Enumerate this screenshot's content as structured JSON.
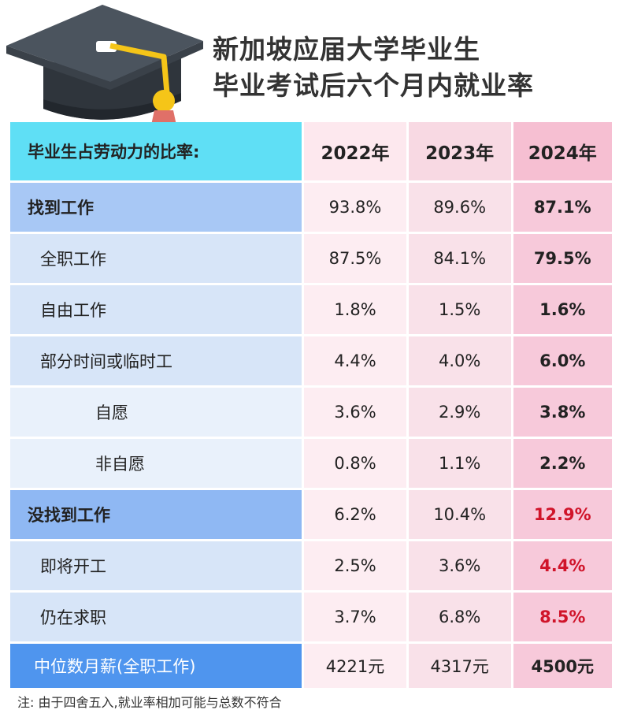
{
  "title": {
    "line1": "新加坡应届大学毕业生",
    "line2": "毕业考试后六个月内就业率"
  },
  "table": {
    "header": {
      "label": "毕业生占劳动力的比率:",
      "y2022": "2022年",
      "y2023": "2023年",
      "y2024": "2024年"
    },
    "rows": [
      {
        "label": "找到工作",
        "y2022": "93.8%",
        "y2023": "89.6%",
        "y2024": "87.1%"
      },
      {
        "label": "全职工作",
        "y2022": "87.5%",
        "y2023": "84.1%",
        "y2024": "79.5%"
      },
      {
        "label": "自由工作",
        "y2022": "1.8%",
        "y2023": "1.5%",
        "y2024": "1.6%"
      },
      {
        "label": "部分时间或临时工",
        "y2022": "4.4%",
        "y2023": "4.0%",
        "y2024": "6.0%"
      },
      {
        "label": "自愿",
        "y2022": "3.6%",
        "y2023": "2.9%",
        "y2024": "3.8%"
      },
      {
        "label": "非自愿",
        "y2022": "0.8%",
        "y2023": "1.1%",
        "y2024": "2.2%"
      },
      {
        "label": "没找到工作",
        "y2022": "6.2%",
        "y2023": "10.4%",
        "y2024": "12.9%"
      },
      {
        "label": "即将开工",
        "y2022": "2.5%",
        "y2023": "3.6%",
        "y2024": "4.4%"
      },
      {
        "label": "仍在求职",
        "y2022": "3.7%",
        "y2023": "6.8%",
        "y2024": "8.5%"
      },
      {
        "label": "中位数月薪(全职工作)",
        "y2022": "4221元",
        "y2023": "4317元",
        "y2024": "4500元"
      }
    ]
  },
  "note": "注: 由于四舍五入,就业率相加可能与总数不符合",
  "colors": {
    "header_cyan": "#5fdff5",
    "highlight_red": "#d0142a",
    "salary_blue": "#4f95ee"
  },
  "icons": {
    "header_graphic": "graduation-cap-icon"
  }
}
